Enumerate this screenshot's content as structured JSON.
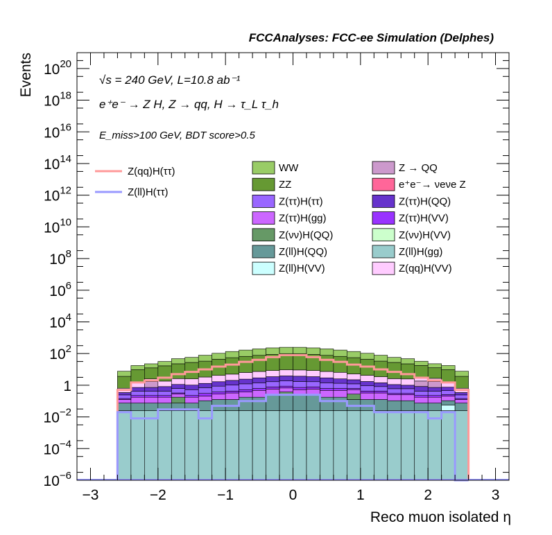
{
  "chart_data": {
    "type": "bar",
    "title": "FCCAnalyses: FCC-ee Simulation (Delphes)",
    "xlabel": "Reco muon isolated η",
    "ylabel": "Events",
    "ylog": true,
    "xlim": [
      -3.2,
      3.2
    ],
    "ylim": [
      1e-06,
      1e+21
    ],
    "x_ticks": [
      -3,
      -2,
      -1,
      0,
      1,
      2,
      3
    ],
    "x_tick_labels": [
      "−3",
      "−2",
      "−1",
      "0",
      "1",
      "2",
      "3"
    ],
    "y_tick_exponents": [
      -6,
      -4,
      -2,
      0,
      2,
      4,
      6,
      8,
      10,
      12,
      14,
      16,
      18,
      20
    ],
    "annotations": {
      "line1": "√s = 240 GeV, L=10.8 ab⁻¹",
      "line2": "e⁺e⁻ → Z H, Z → qq, H → τ_L τ_h",
      "line3": "E_miss>100 GeV, BDT score>0.5"
    },
    "bin_edges": [
      -2.6,
      -2.4,
      -2.2,
      -2.0,
      -1.8,
      -1.6,
      -1.4,
      -1.2,
      -1.0,
      -0.8,
      -0.6,
      -0.4,
      -0.2,
      0.0,
      0.2,
      0.4,
      0.6,
      0.8,
      1.0,
      1.2,
      1.4,
      1.6,
      1.8,
      2.0,
      2.2,
      2.4,
      2.6
    ],
    "stack_order": [
      "Z(ll)H(gg)",
      "Z(ll)H(VV)",
      "Z(ll)H(QQ)",
      "Z(νν)H(QQ)",
      "Z(νν)H(VV)",
      "Z(ττ)H(gg)",
      "Z(ττ)H(VV)",
      "Z(ττ)H(ττ)",
      "Z(ττ)H(QQ)",
      "e⁺e⁻→ νeνe Z",
      "Z → QQ",
      "Z(qq)H(VV)",
      "ZZ",
      "WW"
    ],
    "stacked_series": [
      {
        "name": "Z(ll)H(gg)",
        "color": "#99cccc",
        "values": [
          0.025,
          0.025,
          0.025,
          0.025,
          0.025,
          0.025,
          0.025,
          0.025,
          0.025,
          0.025,
          0.025,
          0.025,
          0.025,
          0.025,
          0.025,
          0.025,
          0.025,
          0.025,
          0.025,
          0.025,
          0.025,
          0.025,
          0.025,
          0.025,
          0.025,
          0.025
        ]
      },
      {
        "name": "Z(ll)H(VV)",
        "color": "#ccffff",
        "values": [
          0.0,
          0.0,
          0.0,
          0.0,
          0.0,
          0.0,
          0.0,
          0.0,
          0.0,
          0.0,
          0.0,
          0.0,
          0.0,
          0.0,
          0.0,
          0.0,
          0.0,
          0.0,
          0.0,
          0.0,
          0.0,
          0.0,
          0.0,
          0.0,
          0.03,
          0.0
        ]
      },
      {
        "name": "Z(ll)H(QQ)",
        "color": "#669999",
        "values": [
          0.05,
          0.05,
          0.05,
          0.05,
          0.05,
          0.05,
          0.08,
          0.1,
          0.1,
          0.15,
          0.15,
          0.2,
          0.2,
          0.2,
          0.2,
          0.15,
          0.15,
          0.1,
          0.1,
          0.1,
          0.08,
          0.08,
          0.05,
          0.05,
          0.05,
          0.05
        ]
      },
      {
        "name": "Z(νν)H(QQ)",
        "color": "#669966",
        "values": [
          0.0,
          0.0,
          0.0,
          0.0,
          0.1,
          0.0,
          0.0,
          0.0,
          0.0,
          0.0,
          0.0,
          0.0,
          0.15,
          0.0,
          0.0,
          0.0,
          0.0,
          0.15,
          0.0,
          0.0,
          0.0,
          0.0,
          0.0,
          0.0,
          0.0,
          0.0
        ]
      },
      {
        "name": "Z(νν)H(VV)",
        "color": "#ccffcc",
        "values": [
          0.0,
          0.0,
          0.0,
          0.0,
          0.0,
          0.0,
          0.0,
          0.0,
          0.0,
          0.0,
          0.0,
          0.0,
          0.0,
          0.0,
          0.0,
          0.0,
          0.0,
          0.0,
          0.0,
          0.0,
          0.0,
          0.0,
          0.0,
          0.0,
          0.0,
          0.0
        ]
      },
      {
        "name": "Z(ττ)H(gg)",
        "color": "#cc66ff",
        "values": [
          0.05,
          0.1,
          0.1,
          0.1,
          0.1,
          0.1,
          0.1,
          0.15,
          0.2,
          0.2,
          0.3,
          0.35,
          0.3,
          0.3,
          0.35,
          0.3,
          0.3,
          0.25,
          0.2,
          0.2,
          0.15,
          0.15,
          0.1,
          0.1,
          0.1,
          0.05
        ]
      },
      {
        "name": "Z(ττ)H(VV)",
        "color": "#9933ff",
        "values": [
          0.02,
          0.05,
          0.05,
          0.05,
          0.05,
          0.05,
          0.1,
          0.1,
          0.1,
          0.15,
          0.15,
          0.2,
          0.2,
          0.2,
          0.2,
          0.15,
          0.15,
          0.1,
          0.1,
          0.1,
          0.05,
          0.05,
          0.05,
          0.05,
          0.05,
          0.02
        ]
      },
      {
        "name": "Z(ττ)H(ττ)",
        "color": "#9966ff",
        "values": [
          0.1,
          0.2,
          0.2,
          0.2,
          0.3,
          0.3,
          0.4,
          0.5,
          0.6,
          0.7,
          0.8,
          0.9,
          1.0,
          1.0,
          0.9,
          0.8,
          0.7,
          0.6,
          0.5,
          0.4,
          0.3,
          0.3,
          0.2,
          0.2,
          0.2,
          0.1
        ]
      },
      {
        "name": "Z(ττ)H(QQ)",
        "color": "#6633cc",
        "values": [
          0.1,
          0.3,
          0.3,
          0.4,
          0.5,
          0.5,
          0.6,
          0.8,
          1.0,
          1.2,
          1.5,
          1.8,
          2.0,
          2.0,
          1.8,
          1.5,
          1.2,
          1.0,
          0.8,
          0.6,
          0.5,
          0.4,
          0.4,
          0.3,
          0.3,
          0.1
        ]
      },
      {
        "name": "e⁺e⁻→ νeνe Z",
        "color": "#ff6699",
        "values": [
          0.0,
          0.0,
          0.0,
          0.0,
          0.0,
          0.0,
          0.0,
          0.0,
          0.0,
          0.0,
          0.0,
          0.0,
          0.0,
          0.0,
          0.0,
          0.0,
          0.0,
          0.0,
          0.0,
          0.0,
          0.0,
          0.0,
          0.015,
          0.0,
          0.0,
          0.0
        ]
      },
      {
        "name": "Z → QQ",
        "color": "#cc99cc",
        "values": [
          0.0,
          0.0,
          1.0,
          0.0,
          0.0,
          0.0,
          0.0,
          0.0,
          0.0,
          0.0,
          0.0,
          0.0,
          0.0,
          0.0,
          0.0,
          0.0,
          0.0,
          0.0,
          0.0,
          0.0,
          0.0,
          0.0,
          1.0,
          1.0,
          0.0,
          0.0
        ]
      },
      {
        "name": "Z(qq)H(VV)",
        "color": "#ffccff",
        "values": [
          0.3,
          0.8,
          0.8,
          1.0,
          1.5,
          1.5,
          2.0,
          2.5,
          3.0,
          4.0,
          4.5,
          5.0,
          5.5,
          5.5,
          5.0,
          4.5,
          4.0,
          3.0,
          2.5,
          2.0,
          1.5,
          1.5,
          1.0,
          1.0,
          0.8,
          0.3
        ]
      },
      {
        "name": "ZZ",
        "color": "#669933",
        "values": [
          3,
          8,
          10,
          15,
          20,
          25,
          30,
          40,
          50,
          60,
          70,
          80,
          90,
          90,
          80,
          70,
          60,
          50,
          40,
          30,
          25,
          20,
          15,
          10,
          8,
          3
        ]
      },
      {
        "name": "WW",
        "color": "#99cc66",
        "values": [
          4,
          8,
          10,
          15,
          25,
          30,
          45,
          60,
          80,
          100,
          120,
          140,
          150,
          150,
          140,
          120,
          100,
          80,
          60,
          45,
          30,
          25,
          15,
          10,
          8,
          4
        ]
      }
    ],
    "line_series": [
      {
        "name": "Z(qq)H(ττ)",
        "color": "#ff9999",
        "values": [
          0.5,
          1.5,
          2,
          3,
          5,
          7,
          10,
          15,
          20,
          30,
          40,
          60,
          80,
          80,
          60,
          40,
          30,
          20,
          15,
          10,
          7,
          5,
          3,
          2,
          1.5,
          0.5
        ]
      },
      {
        "name": "Z(ll)H(ττ)",
        "color": "#9999ff",
        "values": [
          0.02,
          0.008,
          0.008,
          0.03,
          0.03,
          0.03,
          0.008,
          0.05,
          0.05,
          0.1,
          0.1,
          0.25,
          0.25,
          0.25,
          0.25,
          0.1,
          0.1,
          0.05,
          0.05,
          0.02,
          0.02,
          0.02,
          0.02,
          0.008,
          0.02,
          0.0
        ]
      }
    ],
    "legend": {
      "left": [
        {
          "label": "Z(qq)H(ττ)",
          "color": "#ff9999",
          "kind": "line"
        },
        {
          "label": "Z(ll)H(ττ)",
          "color": "#9999ff",
          "kind": "line"
        }
      ],
      "columns": [
        [
          {
            "label": "WW",
            "color": "#99cc66"
          },
          {
            "label": "ZZ",
            "color": "#669933"
          },
          {
            "label": "Z(ττ)H(ττ)",
            "color": "#9966ff"
          },
          {
            "label": "Z(ττ)H(gg)",
            "color": "#cc66ff"
          },
          {
            "label": "Z(νν)H(QQ)",
            "color": "#669966"
          },
          {
            "label": "Z(ll)H(QQ)",
            "color": "#669999"
          },
          {
            "label": "Z(ll)H(VV)",
            "color": "#ccffff"
          }
        ],
        [
          {
            "label": "Z → QQ",
            "color": "#cc99cc"
          },
          {
            "label": "e⁺e⁻→ νeνe Z",
            "color": "#ff6699"
          },
          {
            "label": "Z(ττ)H(QQ)",
            "color": "#6633cc"
          },
          {
            "label": "Z(ττ)H(VV)",
            "color": "#9933ff"
          },
          {
            "label": "Z(νν)H(VV)",
            "color": "#ccffcc"
          },
          {
            "label": "Z(ll)H(gg)",
            "color": "#99cccc"
          },
          {
            "label": "Z(qq)H(VV)",
            "color": "#ffccff"
          }
        ]
      ]
    }
  }
}
